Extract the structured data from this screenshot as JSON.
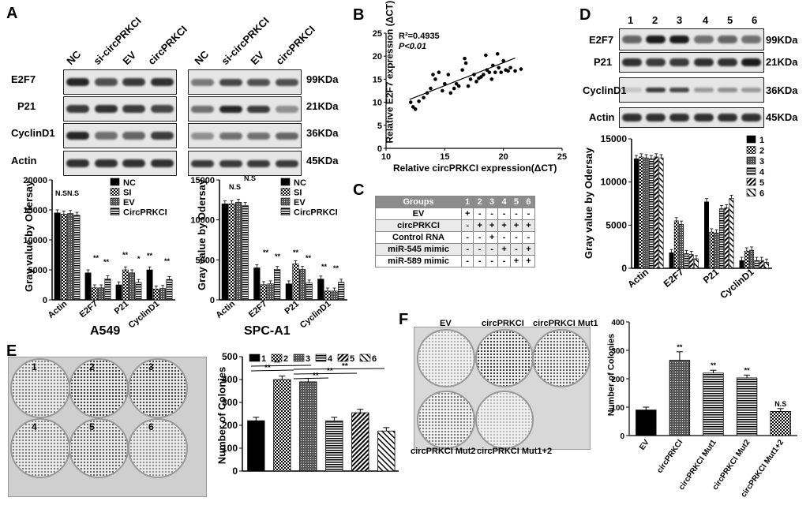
{
  "panel_labels": {
    "A": "A",
    "B": "B",
    "C": "C",
    "D": "D",
    "E": "E",
    "F": "F"
  },
  "blot_A": {
    "lanes": [
      "NC",
      "si-circPRKCI",
      "EV",
      "circPRKCI"
    ],
    "proteins": [
      "E2F7",
      "P21",
      "CyclinD1",
      "Actin"
    ],
    "kda": [
      "99KDa",
      "21KDa",
      "36KDa",
      "45KDa"
    ],
    "cell_lines": [
      "A549",
      "SPC-A1"
    ]
  },
  "blot_D": {
    "lanes": [
      "1",
      "2",
      "3",
      "4",
      "5",
      "6"
    ],
    "proteins": [
      "E2F7",
      "P21",
      "CyclinD1",
      "Actin"
    ],
    "kda": [
      "99KDa",
      "21KDa",
      "36KDa",
      "45KDa"
    ]
  },
  "significance": {
    "ss": "**",
    "s": "*",
    "ns": "N.S",
    "nsns": "N.SN.S"
  },
  "chart_data": [
    {
      "id": "A549",
      "type": "bar",
      "ylabel": "Gray value by Odersay",
      "ylim": [
        0,
        20000
      ],
      "yticks": [
        "0",
        "5000",
        "10000",
        "15000",
        "20000"
      ],
      "categories": [
        "Actin",
        "E2F7",
        "P21",
        "CyclinD1"
      ],
      "xlabel": "A549",
      "series": [
        {
          "name": "NC",
          "values": [
            14500,
            4500,
            2500,
            5000
          ]
        },
        {
          "name": "SI",
          "values": [
            14300,
            2000,
            5000,
            1800
          ]
        },
        {
          "name": "EV",
          "values": [
            14400,
            2000,
            4500,
            1900
          ]
        },
        {
          "name": "CircPRKCI",
          "values": [
            14100,
            3500,
            2900,
            3400
          ]
        }
      ]
    },
    {
      "id": "SPC-A1",
      "type": "bar",
      "ylabel": "Gray value by Odersay",
      "ylim": [
        0,
        15000
      ],
      "yticks": [
        "0",
        "5000",
        "10000",
        "15000"
      ],
      "categories": [
        "Actin",
        "E2F7",
        "P21",
        "CyclinD1"
      ],
      "xlabel": "SPC-A1",
      "series": [
        {
          "name": "NC",
          "values": [
            12000,
            4000,
            2000,
            2600
          ]
        },
        {
          "name": "SI",
          "values": [
            12000,
            1900,
            4500,
            1100
          ]
        },
        {
          "name": "EV",
          "values": [
            12200,
            2000,
            3800,
            1100
          ]
        },
        {
          "name": "CircPRKCI",
          "values": [
            11800,
            3800,
            2100,
            2200
          ]
        }
      ]
    },
    {
      "id": "B",
      "type": "scatter",
      "xlabel": "Relative circPRKCI expression(ΔCT)",
      "ylabel": "Relative E2F7 expression (ΔCT)",
      "xlim": [
        10,
        25
      ],
      "ylim": [
        0,
        25
      ],
      "xticks": [
        "10",
        "15",
        "20",
        "25"
      ],
      "yticks": [
        "0",
        "5",
        "10",
        "15",
        "20",
        "25"
      ],
      "annotation_r2": "R²=0.4935",
      "annotation_p": "P<0.01",
      "fit": {
        "x": [
          12,
          21
        ],
        "y": [
          10.6,
          19.6
        ]
      },
      "points": [
        [
          12.1,
          10
        ],
        [
          12.3,
          9
        ],
        [
          12.5,
          8.5
        ],
        [
          12.8,
          10.2
        ],
        [
          13.2,
          11
        ],
        [
          13.5,
          12
        ],
        [
          13.8,
          13
        ],
        [
          14,
          16
        ],
        [
          14.2,
          15
        ],
        [
          14.5,
          16.5
        ],
        [
          14.8,
          12.5
        ],
        [
          15,
          14
        ],
        [
          15.3,
          16
        ],
        [
          15.5,
          12
        ],
        [
          15.8,
          13
        ],
        [
          16,
          14
        ],
        [
          16.2,
          13.5
        ],
        [
          16.5,
          17
        ],
        [
          16.7,
          19.5
        ],
        [
          16.8,
          18.5
        ],
        [
          17,
          13.5
        ],
        [
          17.2,
          15
        ],
        [
          17.5,
          16
        ],
        [
          17.7,
          14.5
        ],
        [
          17.9,
          15.2
        ],
        [
          18.1,
          15.5
        ],
        [
          18.3,
          16
        ],
        [
          18.5,
          20.2
        ],
        [
          18.6,
          17
        ],
        [
          18.8,
          16.5
        ],
        [
          19,
          15
        ],
        [
          19.1,
          18
        ],
        [
          19.3,
          16.5
        ],
        [
          19.5,
          20.5
        ],
        [
          19.6,
          17.5
        ],
        [
          19.8,
          16.5
        ],
        [
          20,
          19
        ],
        [
          20.2,
          17
        ],
        [
          20.4,
          16.8
        ],
        [
          20.6,
          17.5
        ],
        [
          21,
          16.8
        ],
        [
          21.5,
          17.2
        ]
      ]
    },
    {
      "id": "D",
      "type": "bar",
      "ylabel": "Gray value by Odersay",
      "ylim": [
        0,
        15000
      ],
      "yticks": [
        "0",
        "5000",
        "10000",
        "15000"
      ],
      "categories": [
        "Actin",
        "E2F7",
        "P21",
        "CyclinD1"
      ],
      "series": [
        {
          "name": "1",
          "values": [
            12700,
            1800,
            7700,
            900
          ]
        },
        {
          "name": "2",
          "values": [
            12900,
            5500,
            4200,
            2000
          ]
        },
        {
          "name": "3",
          "values": [
            12800,
            5100,
            4100,
            2100
          ]
        },
        {
          "name": "4",
          "values": [
            12700,
            1700,
            6900,
            900
          ]
        },
        {
          "name": "5",
          "values": [
            12900,
            1600,
            7000,
            900
          ]
        },
        {
          "name": "6",
          "values": [
            12800,
            1100,
            8100,
            700
          ]
        }
      ]
    },
    {
      "id": "E",
      "type": "bar",
      "ylabel": "Number of Colonies",
      "ylim": [
        0,
        500
      ],
      "yticks": [
        "0",
        "100",
        "200",
        "300",
        "400",
        "500"
      ],
      "categories": [
        "1",
        "2",
        "3",
        "4",
        "5",
        "6"
      ],
      "values": [
        220,
        400,
        390,
        220,
        255,
        175
      ]
    },
    {
      "id": "F",
      "type": "bar",
      "ylabel": "Number of Colonies",
      "ylim": [
        0,
        400
      ],
      "yticks": [
        "0",
        "100",
        "200",
        "300",
        "400"
      ],
      "categories": [
        "EV",
        "circPRKCI",
        "circPRKCI Mut1",
        "circPRKCI Mut2",
        "circPRKCI Mut1+2"
      ],
      "values": [
        90,
        265,
        220,
        203,
        85
      ],
      "sig": [
        "",
        "**",
        "**",
        "**",
        "N.S"
      ]
    }
  ],
  "table_C": {
    "header": [
      "Groups",
      "1",
      "2",
      "3",
      "4",
      "5",
      "6"
    ],
    "rows": [
      [
        "EV",
        "+",
        "-",
        "-",
        "-",
        "-",
        "-"
      ],
      [
        "circPRKCI",
        "-",
        "+",
        "+",
        "+",
        "+",
        "+"
      ],
      [
        "Control RNA",
        "-",
        "-",
        "+",
        "-",
        "-",
        "-"
      ],
      [
        "miR-545 mimic",
        "-",
        "-",
        "-",
        "+",
        "-",
        "+"
      ],
      [
        "miR-589 mimic",
        "-",
        "-",
        "-",
        "-",
        "+",
        "+"
      ]
    ]
  },
  "panel_E": {
    "dish_labels": [
      "1",
      "2",
      "3",
      "4",
      "5",
      "6"
    ]
  },
  "panel_F": {
    "dish_labels": [
      "EV",
      "circPRKCI",
      "circPRKCI Mut1",
      "circPRKCI Mut2",
      "circPRKCI Mut1+2"
    ]
  }
}
